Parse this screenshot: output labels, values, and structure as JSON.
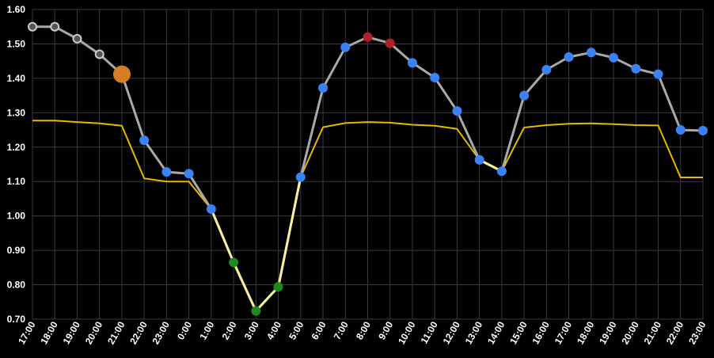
{
  "chart_data": {
    "type": "line",
    "ylim": [
      0.7,
      1.6
    ],
    "y_ticks": [
      "0.70",
      "0.80",
      "0.90",
      "1.00",
      "1.10",
      "1.20",
      "1.30",
      "1.40",
      "1.50",
      "1.60"
    ],
    "x_ticks": [
      "17:00",
      "18:00",
      "19:00",
      "20:00",
      "21:00",
      "22:00",
      "23:00",
      "0:00",
      "1:00",
      "2:00",
      "3:00",
      "4:00",
      "5:00",
      "6:00",
      "7:00",
      "8:00",
      "9:00",
      "10:00",
      "11:00",
      "12:00",
      "13:00",
      "14:00",
      "15:00",
      "16:00",
      "17:00",
      "18:00",
      "19:00",
      "20:00",
      "21:00",
      "22:00",
      "23:00"
    ],
    "grid": true,
    "series": [
      {
        "values": [
          1.55,
          1.55,
          1.515,
          1.47,
          1.412,
          1.22,
          1.128,
          1.123,
          1.02,
          0.865,
          0.724,
          0.794,
          1.113,
          1.372,
          1.49,
          1.52,
          1.502,
          1.445,
          1.402,
          1.305,
          1.163,
          1.13,
          1.35,
          1.425,
          1.462,
          1.475,
          1.46,
          1.428,
          1.412,
          1.25,
          1.248
        ],
        "point_colors": [
          "#cccccc",
          "#cccccc",
          "#cccccc",
          "#cccccc",
          "#d67f22",
          "#3b82f6",
          "#3b82f6",
          "#3b82f6",
          "#3b82f6",
          "#1e8a1e",
          "#1e8a1e",
          "#1e8a1e",
          "#3b82f6",
          "#3b82f6",
          "#3b82f6",
          "#b31f24",
          "#b31f24",
          "#3b82f6",
          "#3b82f6",
          "#3b82f6",
          "#3b82f6",
          "#3b82f6",
          "#3b82f6",
          "#3b82f6",
          "#3b82f6",
          "#3b82f6",
          "#3b82f6",
          "#3b82f6",
          "#3b82f6",
          "#3b82f6",
          "#3b82f6"
        ],
        "hollow_points": [
          0,
          1,
          2,
          3
        ],
        "large_points": [
          4
        ],
        "line_color": "#a9a9a9",
        "highlight_segments": [
          [
            8,
            12
          ],
          [
            20,
            21
          ]
        ],
        "highlight_color": "#f7ef9a"
      },
      {
        "values": [
          1.277,
          1.277,
          1.273,
          1.269,
          1.262,
          1.109,
          1.1,
          1.1,
          1.02,
          0.865,
          0.724,
          0.794,
          1.113,
          1.258,
          1.27,
          1.273,
          1.271,
          1.265,
          1.262,
          1.253,
          1.163,
          1.13,
          1.257,
          1.264,
          1.268,
          1.269,
          1.267,
          1.264,
          1.263,
          1.112,
          1.112
        ],
        "line_color": "#e6b800"
      }
    ]
  }
}
